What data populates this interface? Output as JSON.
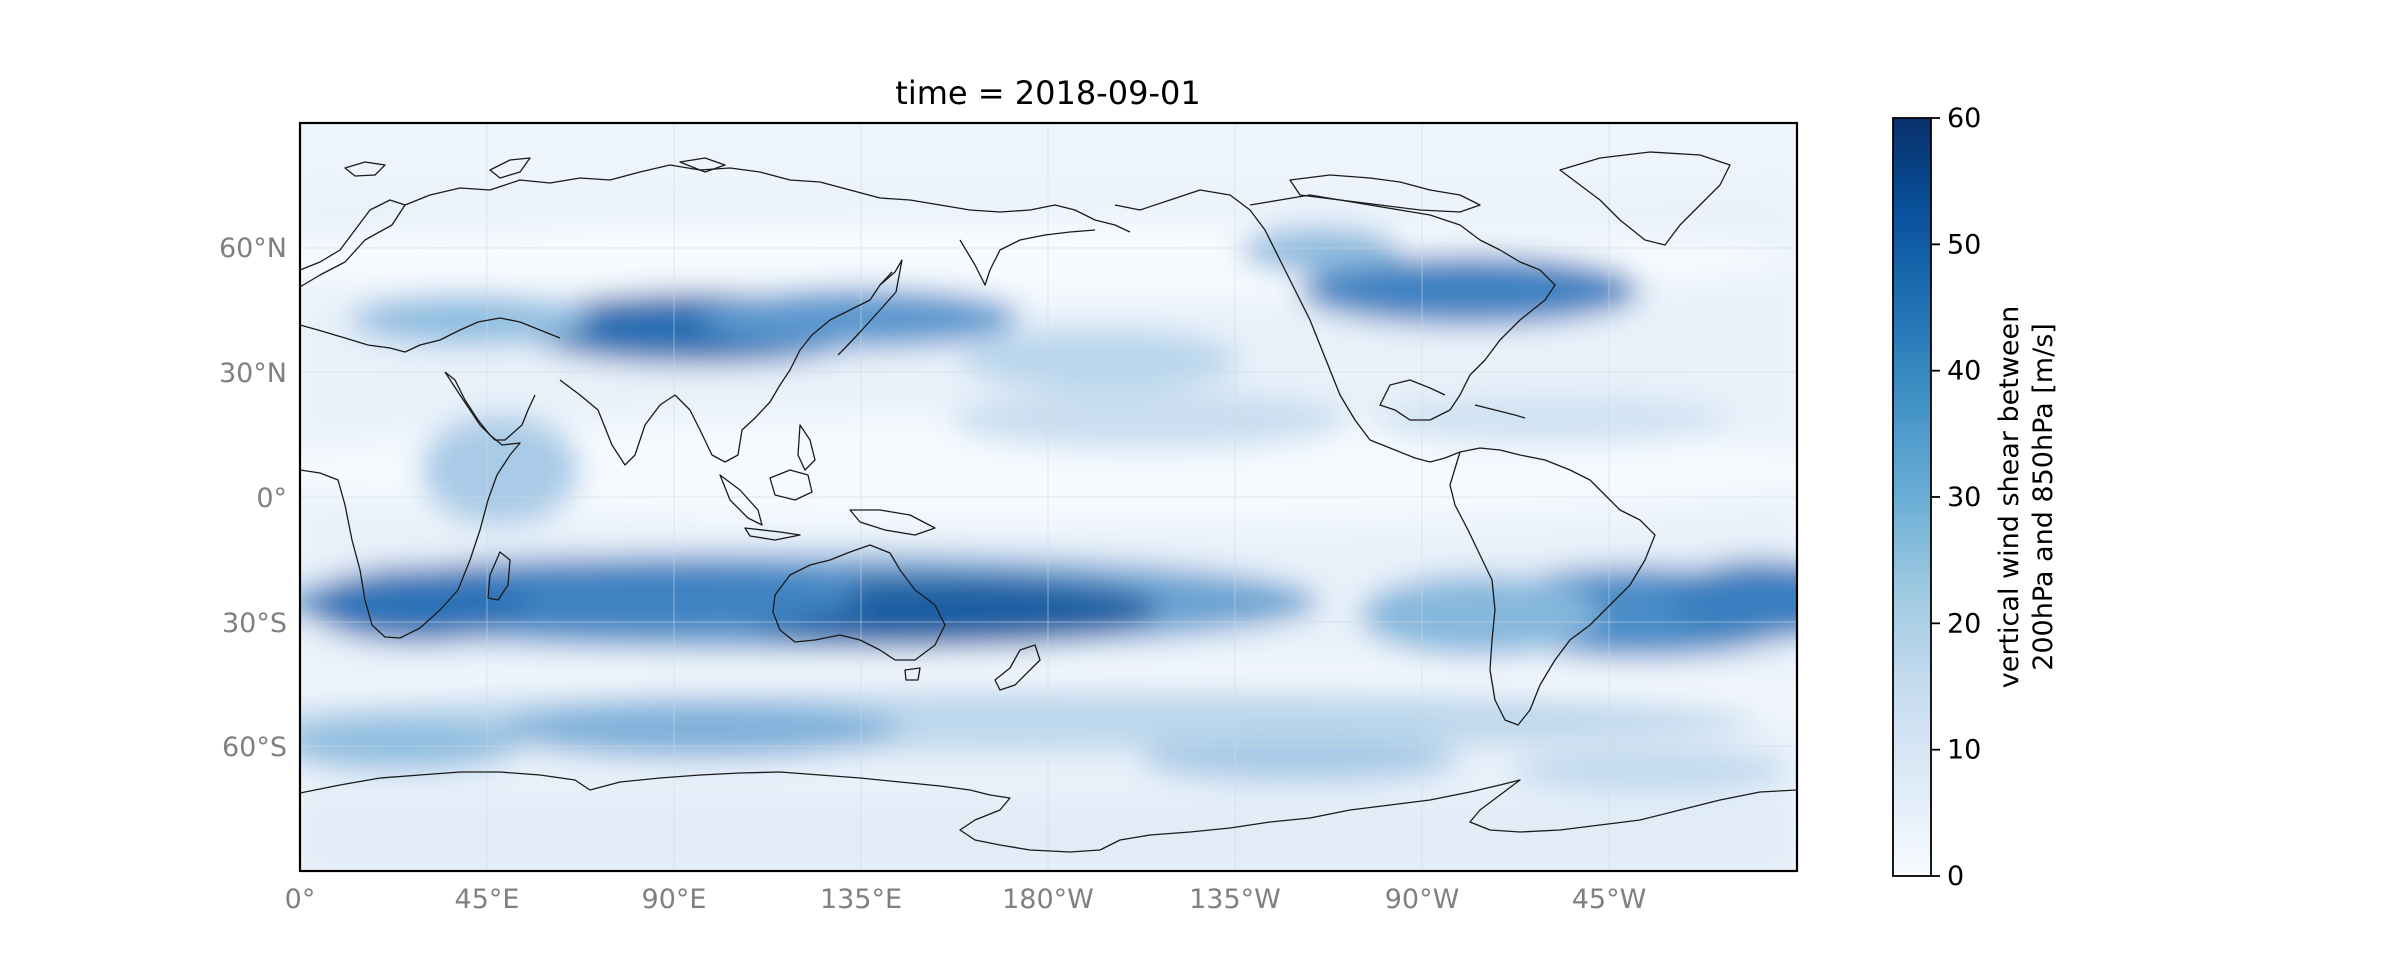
{
  "title": "time = 2018-09-01",
  "map": {
    "projection": "PlateCarree (central longitude 180°)",
    "lon_ticks": [
      "0°",
      "45°E",
      "90°E",
      "135°E",
      "180°W",
      "135°W",
      "90°W",
      "45°W"
    ],
    "lat_ticks": [
      "60°N",
      "30°N",
      "0°",
      "30°S",
      "60°S"
    ],
    "lat_extent": [
      -90,
      90
    ],
    "lon_extent": [
      0,
      360
    ]
  },
  "colorbar": {
    "label_line1": "vertical wind shear between",
    "label_line2": "200hPa and 850hPa [m/s]",
    "min": 0,
    "max": 60,
    "ticks": [
      "0",
      "10",
      "20",
      "30",
      "40",
      "50",
      "60"
    ],
    "colormap": "Blues",
    "color_low": "#f7fbff",
    "color_high": "#08306b"
  },
  "chart_data": {
    "type": "heatmap",
    "title": "time = 2018-09-01",
    "variable": "vertical wind shear between 200hPa and 850hPa",
    "units": "m/s",
    "value_range": [
      0,
      60
    ],
    "x_axis": "longitude",
    "y_axis": "latitude",
    "notable_features": [
      {
        "region": "southern subtropical jet ~30°S, 20°E–150°W",
        "approx_value": 45
      },
      {
        "region": "northern jet over central Asia ~40°N, 80°E–110°E",
        "approx_value": 45
      },
      {
        "region": "North Atlantic ~45°N, 70°W–30°W",
        "approx_value": 35
      },
      {
        "region": "South Pacific / South America ~35°S, 80°W–30°W",
        "approx_value": 35
      },
      {
        "region": "Southern Ocean ~60°S",
        "approx_value": 25
      },
      {
        "region": "equatorial / polar minima",
        "approx_value": 3
      }
    ]
  }
}
